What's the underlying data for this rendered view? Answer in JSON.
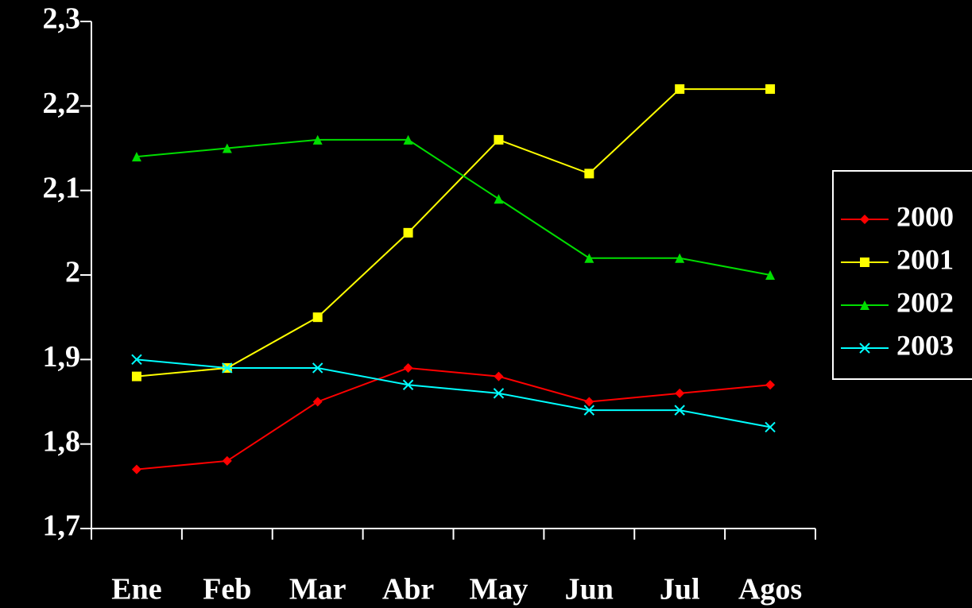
{
  "chart_data": {
    "type": "line",
    "categories": [
      "Ene",
      "Feb",
      "Mar",
      "Abr",
      "May",
      "Jun",
      "Jul",
      "Agos"
    ],
    "series": [
      {
        "name": "2000",
        "color": "#ff0000",
        "marker": "diamond",
        "values": [
          1.77,
          1.78,
          1.85,
          1.89,
          1.88,
          1.85,
          1.86,
          1.87
        ]
      },
      {
        "name": "2001",
        "color": "#ffff00",
        "marker": "square",
        "values": [
          1.88,
          1.89,
          1.95,
          2.05,
          2.16,
          2.12,
          2.22,
          2.22
        ]
      },
      {
        "name": "2002",
        "color": "#00dd00",
        "marker": "triangle",
        "values": [
          2.14,
          2.15,
          2.16,
          2.16,
          2.09,
          2.02,
          2.02,
          2.0
        ]
      },
      {
        "name": "2003",
        "color": "#00ffff",
        "marker": "x",
        "values": [
          1.9,
          1.89,
          1.89,
          1.87,
          1.86,
          1.84,
          1.84,
          1.82
        ]
      }
    ],
    "ylim": [
      1.7,
      2.3
    ],
    "yticks": [
      {
        "value": 1.7,
        "label": "1,7"
      },
      {
        "value": 1.8,
        "label": "1,8"
      },
      {
        "value": 1.9,
        "label": "1,9"
      },
      2,
      {
        "value": 2.1,
        "label": "2,1"
      },
      {
        "value": 2.2,
        "label": "2,2"
      },
      {
        "value": 2.3,
        "label": "2,3"
      }
    ],
    "legend": "right"
  }
}
